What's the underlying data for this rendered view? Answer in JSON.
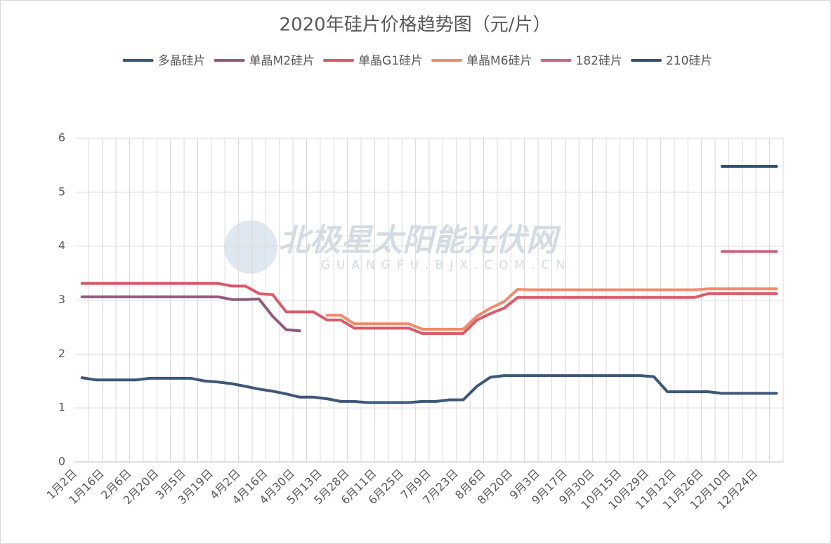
{
  "chart_data": {
    "type": "line",
    "title": "2020年硅片价格趋势图（元/片）",
    "watermark": "北极星太阳能光伏网",
    "watermark_sub": "GUANGFU.BJX.COM.CN",
    "categories": [
      "1月2日",
      null,
      "1月16日",
      null,
      "2月6日",
      null,
      "2月20日",
      null,
      "3月5日",
      null,
      "3月19日",
      null,
      "4月2日",
      null,
      "4月16日",
      null,
      "4月30日",
      null,
      "5月13日",
      null,
      "5月28日",
      null,
      "6月11日",
      null,
      "6月25日",
      null,
      "7月9日",
      null,
      "7月23日",
      null,
      "8月6日",
      null,
      "8月20日",
      null,
      "9月3日",
      null,
      "9月17日",
      null,
      "9月30日",
      null,
      "10月15日",
      null,
      "10月29日",
      null,
      "11月12日",
      null,
      "11月26日",
      null,
      "12月10日",
      null,
      "12月24日",
      null
    ],
    "ylim": [
      0,
      6
    ],
    "yticks": [
      0,
      1,
      2,
      3,
      4,
      5,
      6
    ],
    "grid": true,
    "legend": "top",
    "series": [
      {
        "name": "多晶硅片",
        "color": "#3b5878",
        "values": [
          1.56,
          1.52,
          1.52,
          1.52,
          1.52,
          1.55,
          1.55,
          1.55,
          1.55,
          1.5,
          1.48,
          1.45,
          1.4,
          1.35,
          1.31,
          1.26,
          1.2,
          1.2,
          1.17,
          1.12,
          1.12,
          1.1,
          1.1,
          1.1,
          1.1,
          1.12,
          1.12,
          1.15,
          1.15,
          1.4,
          1.57,
          1.6,
          1.6,
          1.6,
          1.6,
          1.6,
          1.6,
          1.6,
          1.6,
          1.6,
          1.6,
          1.6,
          1.58,
          1.3,
          1.3,
          1.3,
          1.3,
          1.27,
          1.27,
          1.27,
          1.27,
          1.27
        ]
      },
      {
        "name": "单晶M2硅片",
        "color": "#8f5b80",
        "values": [
          3.06,
          3.06,
          3.06,
          3.06,
          3.06,
          3.06,
          3.06,
          3.06,
          3.06,
          3.06,
          3.06,
          3.01,
          3.01,
          3.02,
          2.7,
          2.45,
          2.43,
          null,
          null,
          null,
          null,
          null,
          null,
          null,
          null,
          null,
          null,
          null,
          null,
          null,
          null,
          null,
          null,
          null,
          null,
          null,
          null,
          null,
          null,
          null,
          null,
          null,
          null,
          null,
          null,
          null,
          null,
          null,
          null,
          null,
          null,
          null
        ]
      },
      {
        "name": "单晶G1硅片",
        "color": "#d95a6a",
        "values": [
          3.31,
          3.31,
          3.31,
          3.31,
          3.31,
          3.31,
          3.31,
          3.31,
          3.31,
          3.31,
          3.31,
          3.26,
          3.26,
          3.12,
          3.1,
          2.78,
          2.78,
          2.78,
          2.63,
          2.63,
          2.48,
          2.48,
          2.48,
          2.48,
          2.48,
          2.38,
          2.38,
          2.38,
          2.38,
          2.63,
          2.75,
          2.85,
          3.05,
          3.05,
          3.05,
          3.05,
          3.05,
          3.05,
          3.05,
          3.05,
          3.05,
          3.05,
          3.05,
          3.05,
          3.05,
          3.05,
          3.12,
          3.12,
          3.12,
          3.12,
          3.12,
          3.12
        ]
      },
      {
        "name": "单晶M6硅片",
        "color": "#f28b6b",
        "values": [
          null,
          null,
          null,
          null,
          null,
          null,
          null,
          null,
          null,
          null,
          null,
          null,
          null,
          null,
          null,
          null,
          null,
          null,
          2.72,
          2.72,
          2.56,
          2.56,
          2.56,
          2.56,
          2.56,
          2.46,
          2.46,
          2.46,
          2.46,
          2.7,
          2.85,
          2.97,
          3.2,
          3.19,
          3.19,
          3.19,
          3.19,
          3.19,
          3.19,
          3.19,
          3.19,
          3.19,
          3.19,
          3.19,
          3.19,
          3.19,
          3.21,
          3.21,
          3.21,
          3.21,
          3.21,
          3.21
        ]
      },
      {
        "name": "182硅片",
        "color": "#c9677e",
        "values": [
          null,
          null,
          null,
          null,
          null,
          null,
          null,
          null,
          null,
          null,
          null,
          null,
          null,
          null,
          null,
          null,
          null,
          null,
          null,
          null,
          null,
          null,
          null,
          null,
          null,
          null,
          null,
          null,
          null,
          null,
          null,
          null,
          null,
          null,
          null,
          null,
          null,
          null,
          null,
          null,
          null,
          null,
          null,
          null,
          null,
          null,
          null,
          3.9,
          3.9,
          3.9,
          3.9,
          3.9
        ]
      },
      {
        "name": "210硅片",
        "color": "#36506f",
        "values": [
          null,
          null,
          null,
          null,
          null,
          null,
          null,
          null,
          null,
          null,
          null,
          null,
          null,
          null,
          null,
          null,
          null,
          null,
          null,
          null,
          null,
          null,
          null,
          null,
          null,
          null,
          null,
          null,
          null,
          null,
          null,
          null,
          null,
          null,
          null,
          null,
          null,
          null,
          null,
          null,
          null,
          null,
          null,
          null,
          null,
          null,
          null,
          5.48,
          5.48,
          5.48,
          5.48,
          5.48
        ]
      }
    ]
  }
}
